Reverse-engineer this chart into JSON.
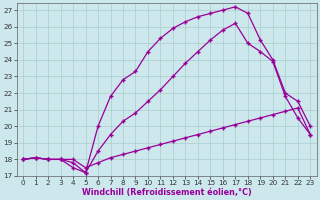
{
  "xlabel": "Windchill (Refroidissement éolien,°C)",
  "bg_color": "#cce8ec",
  "grid_color": "#aacccc",
  "line_color": "#990099",
  "xlim": [
    -0.5,
    23.5
  ],
  "ylim": [
    17,
    27.4
  ],
  "xticks": [
    0,
    1,
    2,
    3,
    4,
    5,
    6,
    7,
    8,
    9,
    10,
    11,
    12,
    13,
    14,
    15,
    16,
    17,
    18,
    19,
    20,
    21,
    22,
    23
  ],
  "yticks": [
    17,
    18,
    19,
    20,
    21,
    22,
    23,
    24,
    25,
    26,
    27
  ],
  "line1_x": [
    0,
    1,
    2,
    3,
    4,
    5,
    6,
    7,
    8,
    9,
    10,
    11,
    12,
    13,
    14,
    15,
    16,
    17,
    18,
    19,
    20,
    21,
    22,
    23
  ],
  "line1_y": [
    18.0,
    18.1,
    18.0,
    18.0,
    18.0,
    17.5,
    17.8,
    18.1,
    18.3,
    18.5,
    18.7,
    18.9,
    19.1,
    19.3,
    19.5,
    19.7,
    19.9,
    20.1,
    20.3,
    20.5,
    20.7,
    20.9,
    21.1,
    19.5
  ],
  "line2_x": [
    0,
    1,
    2,
    3,
    4,
    5,
    6,
    7,
    8,
    9,
    10,
    11,
    12,
    13,
    14,
    15,
    16,
    17,
    18,
    19,
    20,
    21,
    22,
    23
  ],
  "line2_y": [
    18.0,
    18.1,
    18.0,
    18.0,
    17.8,
    17.2,
    18.5,
    19.5,
    20.3,
    20.8,
    21.5,
    22.2,
    23.0,
    23.8,
    24.5,
    25.2,
    25.8,
    26.2,
    25.0,
    24.5,
    23.9,
    21.8,
    20.5,
    19.5
  ],
  "line3_x": [
    0,
    1,
    2,
    3,
    4,
    5,
    6,
    7,
    8,
    9,
    10,
    11,
    12,
    13,
    14,
    15,
    16,
    17,
    18,
    19,
    20,
    21,
    22,
    23
  ],
  "line3_y": [
    18.0,
    18.1,
    18.0,
    18.0,
    17.5,
    17.2,
    20.0,
    21.8,
    22.8,
    23.3,
    24.5,
    25.3,
    25.9,
    26.3,
    26.6,
    26.8,
    27.0,
    27.2,
    26.8,
    25.2,
    24.0,
    22.0,
    21.5,
    20.0
  ],
  "marker": "+",
  "markersize": 3.5,
  "markeredgewidth": 1.0,
  "linewidth": 0.9,
  "xlabel_fontsize": 5.8,
  "tick_fontsize": 5.2
}
